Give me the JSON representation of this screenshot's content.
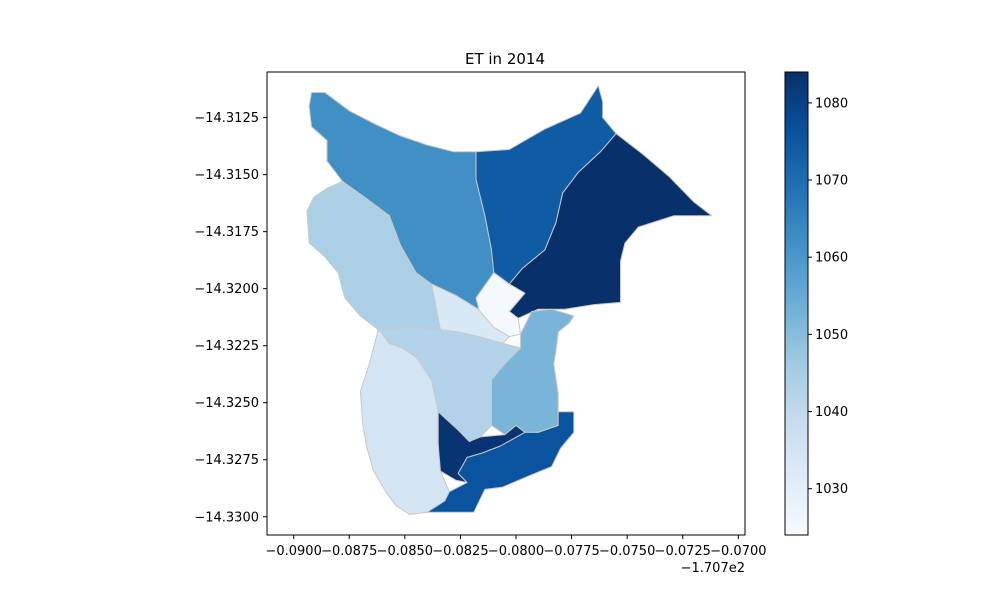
{
  "chart_data": {
    "type": "choropleth",
    "title": "ET in 2014",
    "xlabel": "",
    "ylabel": "",
    "x_offset_label": "−1.707e2",
    "xlim": [
      -0.0912,
      -0.0697
    ],
    "ylim": [
      -14.3308,
      -14.3105
    ],
    "x_ticks": [
      -0.09,
      -0.0875,
      -0.085,
      -0.0825,
      -0.08,
      -0.0775,
      -0.075,
      -0.0725,
      -0.07
    ],
    "x_tick_labels": [
      "−0.0900",
      "−0.0875",
      "−0.0850",
      "−0.0825",
      "−0.0800",
      "−0.0775",
      "−0.0750",
      "−0.0725",
      "−0.0700"
    ],
    "y_ticks": [
      -14.3125,
      -14.315,
      -14.3175,
      -14.32,
      -14.3225,
      -14.325,
      -14.3275,
      -14.33
    ],
    "y_tick_labels": [
      "−14.3125",
      "−14.3150",
      "−14.3175",
      "−14.3200",
      "−14.3225",
      "−14.3250",
      "−14.3275",
      "−14.3300"
    ],
    "grid": false,
    "colormap": "Blues",
    "colorbar": {
      "range": [
        1024,
        1084
      ],
      "ticks": [
        1030,
        1040,
        1050,
        1060,
        1070,
        1080
      ],
      "tick_labels": [
        "1030",
        "1040",
        "1050",
        "1060",
        "1070",
        "1080"
      ]
    },
    "regions": [
      {
        "id": "northwest",
        "value": 1062,
        "poly": [
          [
            -0.0892,
            -14.3114
          ],
          [
            -0.0886,
            -14.3114
          ],
          [
            -0.0875,
            -14.3122
          ],
          [
            -0.0863,
            -14.3128
          ],
          [
            -0.0852,
            -14.3133
          ],
          [
            -0.084,
            -14.3137
          ],
          [
            -0.0828,
            -14.314
          ],
          [
            -0.0818,
            -14.314
          ],
          [
            -0.0818,
            -14.3152
          ],
          [
            -0.0814,
            -14.3168
          ],
          [
            -0.0811,
            -14.3183
          ],
          [
            -0.0808,
            -14.3193
          ],
          [
            -0.0812,
            -14.3198
          ],
          [
            -0.0816,
            -14.3204
          ],
          [
            -0.0817,
            -14.3209
          ],
          [
            -0.0827,
            -14.3203
          ],
          [
            -0.0838,
            -14.3198
          ],
          [
            -0.0845,
            -14.3193
          ],
          [
            -0.0852,
            -14.3181
          ],
          [
            -0.0857,
            -14.3168
          ],
          [
            -0.0868,
            -14.316
          ],
          [
            -0.0878,
            -14.3153
          ],
          [
            -0.0885,
            -14.3144
          ],
          [
            -0.0885,
            -14.3135
          ],
          [
            -0.0892,
            -14.3129
          ],
          [
            -0.0893,
            -14.312
          ]
        ]
      },
      {
        "id": "north-center",
        "value": 1074,
        "poly": [
          [
            -0.0818,
            -14.314
          ],
          [
            -0.0803,
            -14.3139
          ],
          [
            -0.0787,
            -14.313
          ],
          [
            -0.0771,
            -14.3123
          ],
          [
            -0.0763,
            -14.3111
          ],
          [
            -0.0761,
            -14.3118
          ],
          [
            -0.0761,
            -14.3125
          ],
          [
            -0.0755,
            -14.3132
          ],
          [
            -0.0762,
            -14.314
          ],
          [
            -0.0772,
            -14.3149
          ],
          [
            -0.0779,
            -14.3158
          ],
          [
            -0.0782,
            -14.3171
          ],
          [
            -0.0787,
            -14.3183
          ],
          [
            -0.0797,
            -14.3191
          ],
          [
            -0.0803,
            -14.3198
          ],
          [
            -0.081,
            -14.3193
          ],
          [
            -0.0811,
            -14.3183
          ],
          [
            -0.0814,
            -14.3168
          ],
          [
            -0.0818,
            -14.3152
          ]
        ]
      },
      {
        "id": "northeast",
        "value": 1084,
        "poly": [
          [
            -0.0755,
            -14.3132
          ],
          [
            -0.0743,
            -14.3141
          ],
          [
            -0.0731,
            -14.3151
          ],
          [
            -0.072,
            -14.3162
          ],
          [
            -0.0712,
            -14.3168
          ],
          [
            -0.0729,
            -14.3168
          ],
          [
            -0.0745,
            -14.3173
          ],
          [
            -0.0751,
            -14.318
          ],
          [
            -0.0753,
            -14.3188
          ],
          [
            -0.0753,
            -14.3206
          ],
          [
            -0.0765,
            -14.3207
          ],
          [
            -0.0778,
            -14.3209
          ],
          [
            -0.079,
            -14.3209
          ],
          [
            -0.0799,
            -14.3213
          ],
          [
            -0.0803,
            -14.321
          ],
          [
            -0.0796,
            -14.3202
          ],
          [
            -0.0803,
            -14.3198
          ],
          [
            -0.0797,
            -14.3191
          ],
          [
            -0.0787,
            -14.3183
          ],
          [
            -0.0782,
            -14.3171
          ],
          [
            -0.0779,
            -14.3158
          ],
          [
            -0.0772,
            -14.3149
          ],
          [
            -0.0762,
            -14.314
          ]
        ]
      },
      {
        "id": "center-lightest",
        "value": 1025,
        "poly": [
          [
            -0.081,
            -14.3193
          ],
          [
            -0.0803,
            -14.3198
          ],
          [
            -0.0796,
            -14.3202
          ],
          [
            -0.0803,
            -14.321
          ],
          [
            -0.0799,
            -14.3213
          ],
          [
            -0.0798,
            -14.322
          ],
          [
            -0.0803,
            -14.3221
          ],
          [
            -0.081,
            -14.3217
          ],
          [
            -0.0816,
            -14.3212
          ],
          [
            -0.0818,
            -14.3204
          ]
        ]
      },
      {
        "id": "west",
        "value": 1044,
        "poly": [
          [
            -0.0878,
            -14.3153
          ],
          [
            -0.0868,
            -14.316
          ],
          [
            -0.0857,
            -14.3168
          ],
          [
            -0.0852,
            -14.3181
          ],
          [
            -0.0845,
            -14.3193
          ],
          [
            -0.0838,
            -14.3198
          ],
          [
            -0.0836,
            -14.3208
          ],
          [
            -0.0834,
            -14.3218
          ],
          [
            -0.0847,
            -14.3217
          ],
          [
            -0.0862,
            -14.3218
          ],
          [
            -0.087,
            -14.3212
          ],
          [
            -0.0877,
            -14.3204
          ],
          [
            -0.088,
            -14.3193
          ],
          [
            -0.0886,
            -14.3186
          ],
          [
            -0.0893,
            -14.318
          ],
          [
            -0.0894,
            -14.3166
          ],
          [
            -0.0891,
            -14.316
          ],
          [
            -0.0885,
            -14.3156
          ]
        ]
      },
      {
        "id": "center-light",
        "value": 1033,
        "poly": [
          [
            -0.0838,
            -14.3198
          ],
          [
            -0.0827,
            -14.3203
          ],
          [
            -0.0817,
            -14.3209
          ],
          [
            -0.081,
            -14.3217
          ],
          [
            -0.0803,
            -14.3221
          ],
          [
            -0.0806,
            -14.3224
          ],
          [
            -0.0817,
            -14.3221
          ],
          [
            -0.0826,
            -14.3219
          ],
          [
            -0.0834,
            -14.3218
          ],
          [
            -0.0836,
            -14.3208
          ]
        ]
      },
      {
        "id": "center",
        "value": 1043,
        "poly": [
          [
            -0.0862,
            -14.3218
          ],
          [
            -0.0847,
            -14.3217
          ],
          [
            -0.0834,
            -14.3218
          ],
          [
            -0.0826,
            -14.3219
          ],
          [
            -0.0817,
            -14.3221
          ],
          [
            -0.0806,
            -14.3224
          ],
          [
            -0.0798,
            -14.3226
          ],
          [
            -0.0805,
            -14.3233
          ],
          [
            -0.0811,
            -14.324
          ],
          [
            -0.0811,
            -14.326
          ],
          [
            -0.0816,
            -14.3265
          ],
          [
            -0.0821,
            -14.3267
          ],
          [
            -0.0826,
            -14.3262
          ],
          [
            -0.0835,
            -14.3254
          ],
          [
            -0.0838,
            -14.324
          ],
          [
            -0.0845,
            -14.323
          ],
          [
            -0.0851,
            -14.3226
          ],
          [
            -0.0857,
            -14.3224
          ],
          [
            -0.086,
            -14.322
          ]
        ]
      },
      {
        "id": "east",
        "value": 1052,
        "poly": [
          [
            -0.0798,
            -14.322
          ],
          [
            -0.0793,
            -14.321
          ],
          [
            -0.0784,
            -14.3209
          ],
          [
            -0.0774,
            -14.3212
          ],
          [
            -0.0776,
            -14.3215
          ],
          [
            -0.0781,
            -14.3219
          ],
          [
            -0.0782,
            -14.3227
          ],
          [
            -0.0783,
            -14.3233
          ],
          [
            -0.0781,
            -14.3246
          ],
          [
            -0.0781,
            -14.326
          ],
          [
            -0.079,
            -14.3263
          ],
          [
            -0.0796,
            -14.3263
          ],
          [
            -0.08,
            -14.326
          ],
          [
            -0.0805,
            -14.3264
          ],
          [
            -0.0811,
            -14.326
          ],
          [
            -0.0811,
            -14.324
          ],
          [
            -0.0805,
            -14.3233
          ],
          [
            -0.0798,
            -14.3226
          ]
        ]
      },
      {
        "id": "southwest",
        "value": 1035,
        "poly": [
          [
            -0.0862,
            -14.3218
          ],
          [
            -0.086,
            -14.322
          ],
          [
            -0.0857,
            -14.3224
          ],
          [
            -0.0851,
            -14.3226
          ],
          [
            -0.0845,
            -14.323
          ],
          [
            -0.0838,
            -14.324
          ],
          [
            -0.0835,
            -14.3254
          ],
          [
            -0.0835,
            -14.3268
          ],
          [
            -0.0834,
            -14.328
          ],
          [
            -0.083,
            -14.3289
          ],
          [
            -0.0832,
            -14.3293
          ],
          [
            -0.084,
            -14.3298
          ],
          [
            -0.0848,
            -14.3299
          ],
          [
            -0.0854,
            -14.3295
          ],
          [
            -0.0858,
            -14.329
          ],
          [
            -0.0864,
            -14.328
          ],
          [
            -0.0867,
            -14.327
          ],
          [
            -0.0869,
            -14.3259
          ],
          [
            -0.087,
            -14.3245
          ],
          [
            -0.0866,
            -14.3233
          ]
        ]
      },
      {
        "id": "south-dark",
        "value": 1083,
        "poly": [
          [
            -0.0835,
            -14.3254
          ],
          [
            -0.0826,
            -14.3262
          ],
          [
            -0.0821,
            -14.3267
          ],
          [
            -0.0816,
            -14.3265
          ],
          [
            -0.0805,
            -14.3264
          ],
          [
            -0.08,
            -14.326
          ],
          [
            -0.0796,
            -14.3263
          ],
          [
            -0.0807,
            -14.3269
          ],
          [
            -0.0815,
            -14.3272
          ],
          [
            -0.0822,
            -14.3274
          ],
          [
            -0.0826,
            -14.3281
          ],
          [
            -0.0822,
            -14.3285
          ],
          [
            -0.0827,
            -14.3284
          ],
          [
            -0.0834,
            -14.328
          ],
          [
            -0.0835,
            -14.3268
          ]
        ]
      },
      {
        "id": "south",
        "value": 1076,
        "poly": [
          [
            -0.0826,
            -14.3281
          ],
          [
            -0.0822,
            -14.3274
          ],
          [
            -0.0815,
            -14.3272
          ],
          [
            -0.0807,
            -14.3269
          ],
          [
            -0.0796,
            -14.3263
          ],
          [
            -0.079,
            -14.3263
          ],
          [
            -0.0781,
            -14.326
          ],
          [
            -0.0781,
            -14.3254
          ],
          [
            -0.0774,
            -14.3254
          ],
          [
            -0.0774,
            -14.3263
          ],
          [
            -0.078,
            -14.327
          ],
          [
            -0.0784,
            -14.3278
          ],
          [
            -0.0794,
            -14.3282
          ],
          [
            -0.0806,
            -14.3287
          ],
          [
            -0.0814,
            -14.3288
          ],
          [
            -0.0819,
            -14.3298
          ],
          [
            -0.083,
            -14.3298
          ],
          [
            -0.084,
            -14.3298
          ],
          [
            -0.0832,
            -14.3293
          ],
          [
            -0.083,
            -14.3289
          ],
          [
            -0.0822,
            -14.3285
          ]
        ]
      }
    ]
  }
}
